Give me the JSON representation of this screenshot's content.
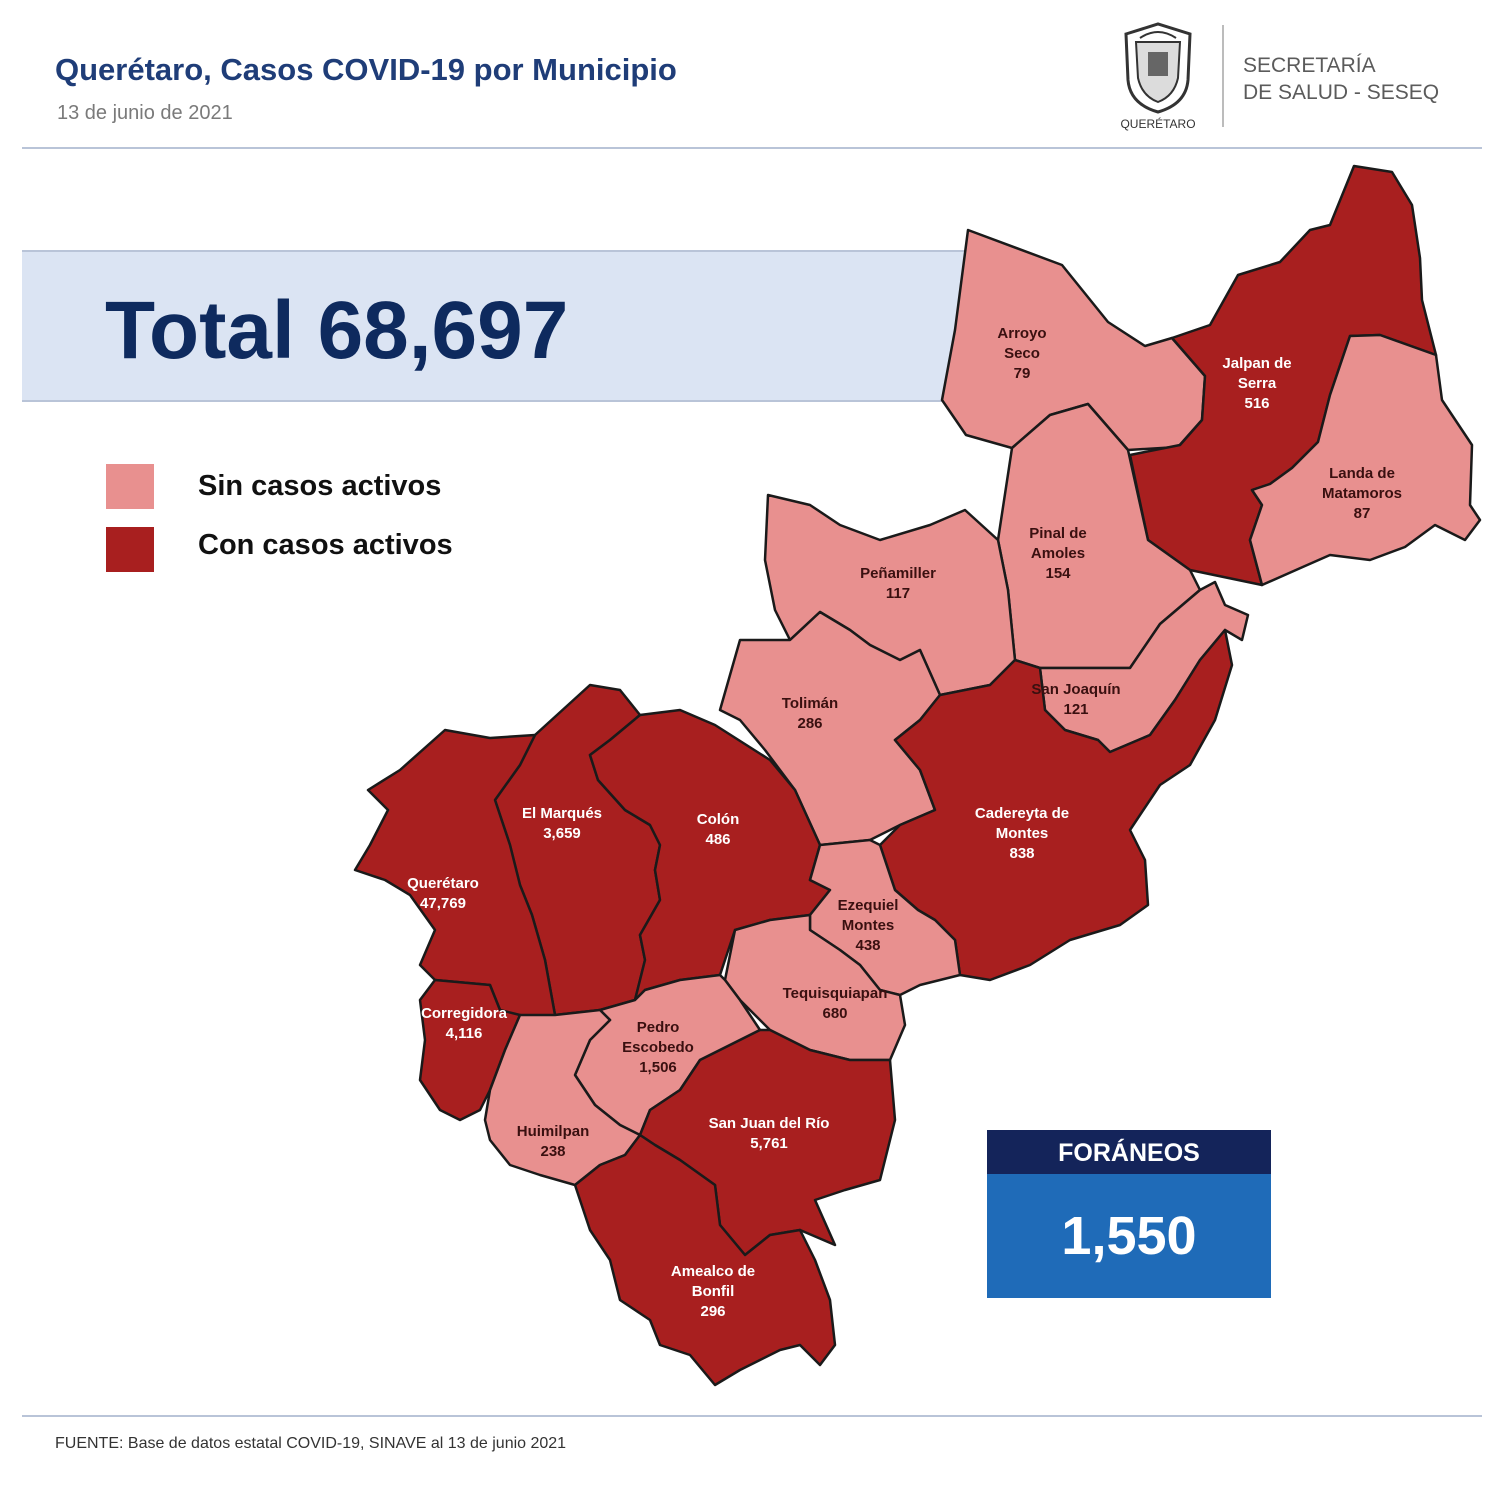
{
  "header": {
    "title": "Querétaro, Casos COVID-19 por Municipio",
    "date": "13 de junio de 2021",
    "logo_caption": "QUERÉTARO",
    "agency_line1": "SECRETARÍA",
    "agency_line2": "DE SALUD - SESEQ"
  },
  "total": {
    "text": "Total 68,697",
    "value": 68697
  },
  "legend": {
    "items": [
      {
        "label": "Sin casos activos",
        "color": "#e8908f"
      },
      {
        "label": "Con casos activos",
        "color": "#a81f1f"
      }
    ]
  },
  "colors": {
    "sin": "#e8908f",
    "con": "#a81f1f",
    "text_on_light": "#3a1010",
    "text_on_dark": "#ffffff"
  },
  "municipios": [
    {
      "id": "arroyo-seco",
      "name1": "Arroyo",
      "name2": "Seco",
      "cases": "79",
      "status": "sin"
    },
    {
      "id": "jalpan",
      "name1": "Jalpan de",
      "name2": "Serra",
      "cases": "516",
      "status": "con"
    },
    {
      "id": "landa",
      "name1": "Landa de",
      "name2": "Matamoros",
      "cases": "87",
      "status": "sin"
    },
    {
      "id": "pinal",
      "name1": "Pinal de",
      "name2": "Amoles",
      "cases": "154",
      "status": "sin"
    },
    {
      "id": "penamiller",
      "name1": "Peñamiller",
      "name2": "",
      "cases": "117",
      "status": "sin"
    },
    {
      "id": "san-joaquin",
      "name1": "San Joaquín",
      "name2": "",
      "cases": "121",
      "status": "sin"
    },
    {
      "id": "toliman",
      "name1": "Tolimán",
      "name2": "",
      "cases": "286",
      "status": "sin"
    },
    {
      "id": "cadereyta",
      "name1": "Cadereyta de",
      "name2": "Montes",
      "cases": "838",
      "status": "con"
    },
    {
      "id": "el-marques",
      "name1": "El Marqués",
      "name2": "",
      "cases": "3,659",
      "status": "con"
    },
    {
      "id": "colon",
      "name1": "Colón",
      "name2": "",
      "cases": "486",
      "status": "con"
    },
    {
      "id": "queretaro",
      "name1": "Querétaro",
      "name2": "",
      "cases": "47,769",
      "status": "con"
    },
    {
      "id": "ezequiel",
      "name1": "Ezequiel",
      "name2": "Montes",
      "cases": "438",
      "status": "sin"
    },
    {
      "id": "tequisquiapan",
      "name1": "Tequisquiapan",
      "name2": "",
      "cases": "680",
      "status": "sin"
    },
    {
      "id": "corregidora",
      "name1": "Corregidora",
      "name2": "",
      "cases": "4,116",
      "status": "con"
    },
    {
      "id": "pedro-escobedo",
      "name1": "Pedro",
      "name2": "Escobedo",
      "cases": "1,506",
      "status": "sin"
    },
    {
      "id": "huimilpan",
      "name1": "Huimilpan",
      "name2": "",
      "cases": "238",
      "status": "sin"
    },
    {
      "id": "san-juan",
      "name1": "San Juan del Río",
      "name2": "",
      "cases": "5,761",
      "status": "con"
    },
    {
      "id": "amealco",
      "name1": "Amealco de",
      "name2": "Bonfil",
      "cases": "296",
      "status": "con"
    }
  ],
  "foraneos": {
    "label": "FORÁNEOS",
    "value": "1,550"
  },
  "footer": {
    "source": "FUENTE:  Base de datos estatal COVID-19,  SINAVE  al 13 de junio  2021"
  }
}
